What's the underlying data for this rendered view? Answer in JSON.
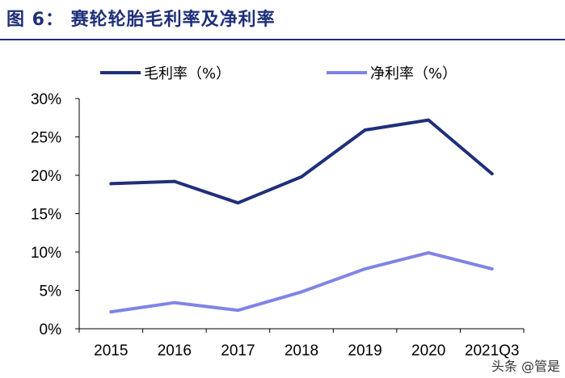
{
  "figure": {
    "title": "图 6： 赛轮轮胎毛利率及净利率"
  },
  "watermark": "头条 @管是",
  "colors": {
    "title": "#1f2f7a",
    "series": [
      "#1f2f7a",
      "#7f84e6"
    ],
    "axis": "#000000"
  },
  "chart_data": {
    "type": "line",
    "categories": [
      "2015",
      "2016",
      "2017",
      "2018",
      "2019",
      "2020",
      "2021Q3"
    ],
    "series": [
      {
        "name": "毛利率（%）",
        "values": [
          18.9,
          19.2,
          16.4,
          19.8,
          25.9,
          27.2,
          20.2
        ]
      },
      {
        "name": "净利率（%）",
        "values": [
          2.2,
          3.4,
          2.4,
          4.8,
          7.8,
          9.9,
          7.8
        ]
      }
    ],
    "ylim": [
      0,
      30
    ],
    "y_ticks": [
      0,
      5,
      10,
      15,
      20,
      25,
      30
    ],
    "y_tick_labels": [
      "0%",
      "5%",
      "10%",
      "15%",
      "20%",
      "25%",
      "30%"
    ],
    "grid": false,
    "legend_position": "top"
  }
}
